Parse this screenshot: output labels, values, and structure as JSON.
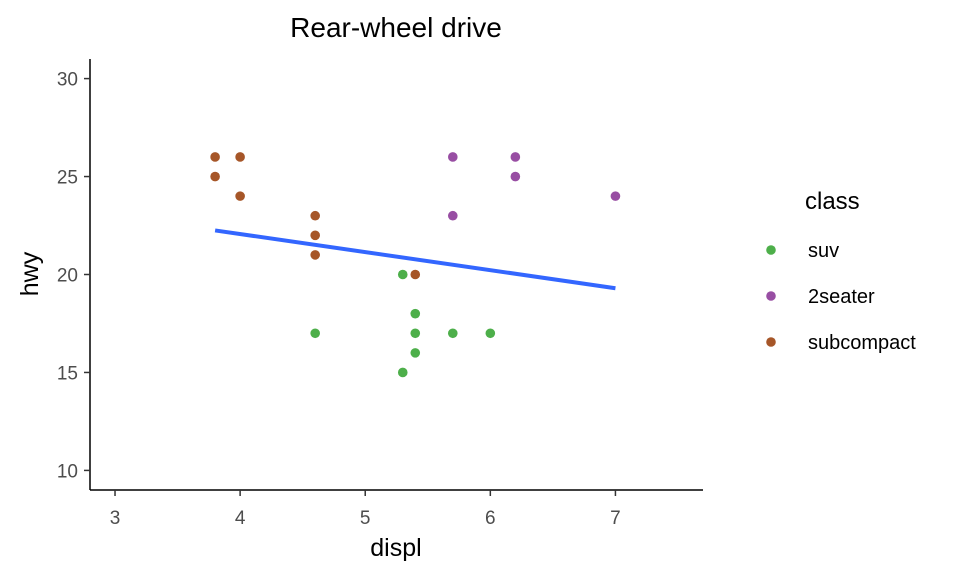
{
  "chart_data": {
    "type": "scatter",
    "title": "Rear-wheel drive",
    "xlabel": "displ",
    "ylabel": "hwy",
    "xlim": [
      2.8,
      7.7
    ],
    "ylim": [
      9,
      31
    ],
    "x_ticks": [
      "3",
      "4",
      "5",
      "6",
      "7"
    ],
    "y_ticks": [
      "10",
      "15",
      "20",
      "25",
      "30"
    ],
    "legend": {
      "title": "class",
      "position": "right",
      "entries": [
        "suv",
        "2seater",
        "subcompact"
      ]
    },
    "series": [
      {
        "name": "suv",
        "color": "#4daf4a",
        "points": [
          {
            "x": 4.6,
            "y": 17
          },
          {
            "x": 5.3,
            "y": 20
          },
          {
            "x": 5.3,
            "y": 15
          },
          {
            "x": 5.4,
            "y": 18
          },
          {
            "x": 5.4,
            "y": 17
          },
          {
            "x": 5.4,
            "y": 16
          },
          {
            "x": 5.7,
            "y": 17
          },
          {
            "x": 6.0,
            "y": 17
          }
        ]
      },
      {
        "name": "2seater",
        "color": "#984ea3",
        "points": [
          {
            "x": 5.7,
            "y": 26
          },
          {
            "x": 5.7,
            "y": 23
          },
          {
            "x": 6.2,
            "y": 26
          },
          {
            "x": 6.2,
            "y": 25
          },
          {
            "x": 7.0,
            "y": 24
          }
        ]
      },
      {
        "name": "subcompact",
        "color": "#a65628",
        "points": [
          {
            "x": 3.8,
            "y": 26
          },
          {
            "x": 3.8,
            "y": 25
          },
          {
            "x": 4.0,
            "y": 26
          },
          {
            "x": 4.0,
            "y": 24
          },
          {
            "x": 4.6,
            "y": 23
          },
          {
            "x": 4.6,
            "y": 22
          },
          {
            "x": 4.6,
            "y": 21
          },
          {
            "x": 5.4,
            "y": 20
          }
        ]
      }
    ],
    "trend_line": {
      "name": "linear fit",
      "color": "#3366ff",
      "x": [
        3.8,
        7.0
      ],
      "y": [
        22.25,
        19.3
      ]
    }
  }
}
